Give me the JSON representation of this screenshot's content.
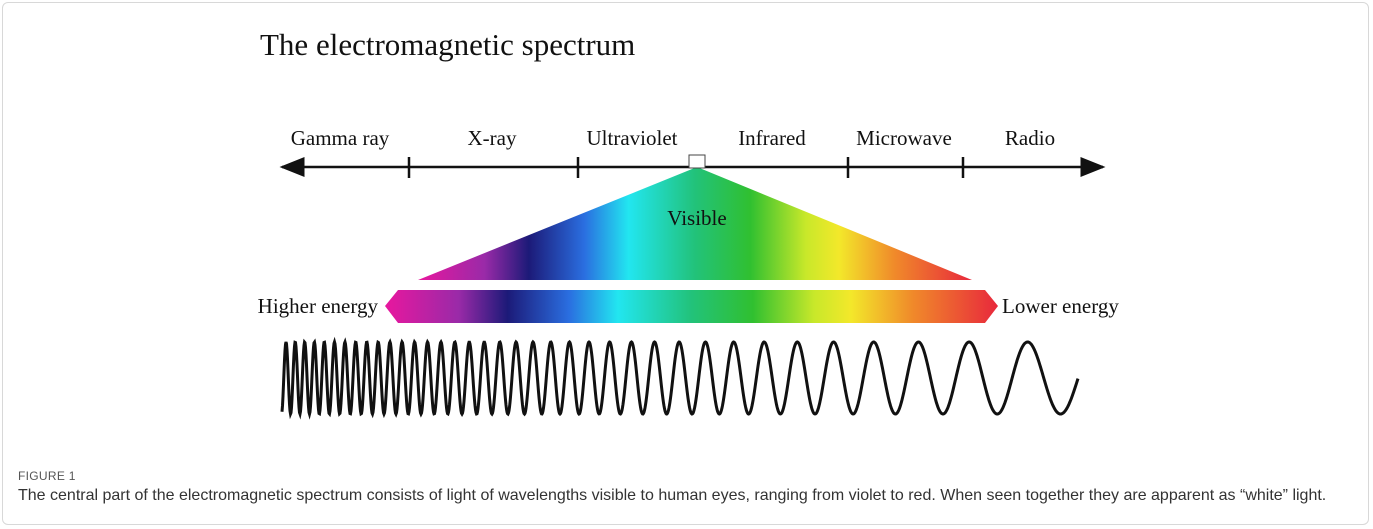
{
  "figure": {
    "title": "The electromagnetic spectrum",
    "bands": [
      "Gamma ray",
      "X-ray",
      "Ultraviolet",
      "Infrared",
      "Microwave",
      "Radio"
    ],
    "visible_label": "Visible",
    "higher_energy": "Higher energy",
    "lower_energy": "Lower energy",
    "label": "FIGURE 1",
    "caption": "The central part of the electromagnetic spectrum consists of light of wavelengths visible to human eyes, ranging from violet to red. When seen together they are apparent as “white” light."
  }
}
